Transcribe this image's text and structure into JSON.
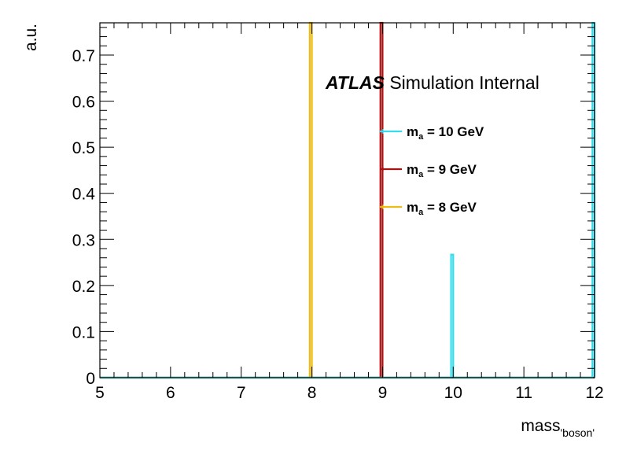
{
  "chart_data": {
    "type": "line",
    "subtype": "histogram",
    "xlabel": "mass",
    "xlabel_sub": "'boson'",
    "ylabel": "a.u.",
    "xlim": [
      5,
      12
    ],
    "ylim": [
      0,
      0.77
    ],
    "xticks": [
      5,
      6,
      7,
      8,
      9,
      10,
      11,
      12
    ],
    "yticks": [
      0,
      0.1,
      0.2,
      0.3,
      0.4,
      0.5,
      0.6,
      0.7
    ],
    "ytick_labels": [
      "0",
      "0.1",
      "0.2",
      "0.3",
      "0.4",
      "0.5",
      "0.6",
      "0.7"
    ],
    "grid": false,
    "annotation": {
      "bold_italic": "ATLAS",
      "text": " Simulation Internal"
    },
    "series": [
      {
        "name": "m",
        "name_sub": "a",
        "name_suffix": " = 10 GeV",
        "color": "#33ddee",
        "spikes": [
          {
            "x0": 9.97,
            "x1": 10.0,
            "y": 0.267
          },
          {
            "x0": 11.97,
            "x1": 12.0,
            "y": 0.77
          }
        ]
      },
      {
        "name": "m",
        "name_sub": "a",
        "name_suffix": " = 9 GeV",
        "color": "#aa1111",
        "spikes": [
          {
            "x0": 8.97,
            "x1": 9.0,
            "y": 0.77
          }
        ]
      },
      {
        "name": "m",
        "name_sub": "a",
        "name_suffix": " = 8 GeV",
        "color": "#eebb11",
        "spikes": [
          {
            "x0": 7.97,
            "x1": 8.0,
            "y": 0.77
          }
        ]
      }
    ],
    "legend_position": "top-right"
  }
}
